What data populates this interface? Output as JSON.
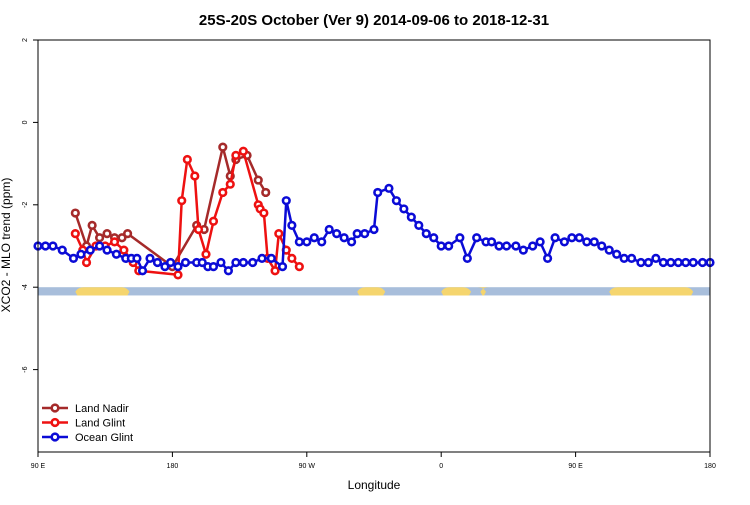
{
  "chart_data": {
    "type": "scatter",
    "title": "25S-20S October (Ver 9)   2014-09-06 to 2018-12-31",
    "xlabel": "Longitude",
    "ylabel": "XCO2 - MLO trend (ppm)",
    "xlim": [
      90,
      450
    ],
    "ylim": [
      -8,
      2
    ],
    "x_ticks": [
      {
        "value": 90,
        "label": "90 E"
      },
      {
        "value": 162,
        "label": "180"
      },
      {
        "value": 234,
        "label": "90 W"
      },
      {
        "value": 306,
        "label": "0"
      },
      {
        "value": 378,
        "label": "90 E"
      },
      {
        "value": 450,
        "label": "180"
      }
    ],
    "y_ticks": [
      {
        "value": 2,
        "label": "2"
      },
      {
        "value": 0,
        "label": "0"
      },
      {
        "value": -2,
        "label": "-2"
      },
      {
        "value": -4,
        "label": "-4"
      },
      {
        "value": -6,
        "label": "-6"
      }
    ],
    "legend_position": "bottom-left",
    "grid": false,
    "land_band": {
      "y_range": [
        -4.2,
        -4.0
      ],
      "ocean_color": "#a8bedb",
      "land_color": "#f5d56e",
      "land_segments": [
        [
          110,
          139
        ],
        [
          261,
          276
        ],
        [
          306,
          322
        ],
        [
          327,
          330
        ],
        [
          396,
          441
        ]
      ]
    },
    "series": [
      {
        "name": "Land Nadir",
        "color": "#a52a2a",
        "x": [
          110,
          116,
          119,
          123,
          127,
          131,
          135,
          138,
          162,
          175,
          179,
          189,
          193,
          196,
          202,
          208,
          212
        ],
        "y": [
          -2.2,
          -3.0,
          -2.5,
          -2.8,
          -2.7,
          -2.8,
          -2.8,
          -2.7,
          -3.5,
          -2.5,
          -2.6,
          -0.6,
          -1.3,
          -0.9,
          -0.8,
          -1.4,
          -1.7
        ]
      },
      {
        "name": "Land Glint",
        "color": "#ee1111",
        "x": [
          110,
          114,
          116,
          121,
          126,
          131,
          136,
          141,
          144,
          165,
          167,
          170,
          174,
          176,
          180,
          184,
          189,
          193,
          196,
          200,
          208,
          209,
          211,
          213,
          217,
          219,
          223,
          226,
          230
        ],
        "y": [
          -2.7,
          -3.1,
          -3.4,
          -3.0,
          -3.0,
          -2.9,
          -3.1,
          -3.4,
          -3.6,
          -3.7,
          -1.9,
          -0.9,
          -1.3,
          -2.6,
          -3.2,
          -2.4,
          -1.7,
          -1.5,
          -0.8,
          -0.7,
          -2.0,
          -2.1,
          -2.2,
          -3.3,
          -3.6,
          -2.7,
          -3.1,
          -3.3,
          -3.5
        ]
      },
      {
        "name": "Ocean Glint",
        "color": "#0b0bd6",
        "x": [
          90,
          94,
          98,
          103,
          109,
          113,
          118,
          123,
          127,
          132,
          137,
          140,
          143,
          146,
          150,
          154,
          158,
          161,
          165,
          169,
          175,
          178,
          181,
          184,
          188,
          192,
          196,
          200,
          205,
          210,
          215,
          221,
          223,
          226,
          230,
          234,
          238,
          242,
          246,
          250,
          254,
          258,
          261,
          265,
          270,
          272,
          278,
          282,
          286,
          290,
          294,
          298,
          302,
          306,
          310,
          316,
          320,
          325,
          330,
          333,
          337,
          341,
          346,
          350,
          355,
          359,
          363,
          367,
          372,
          376,
          380,
          384,
          388,
          392,
          396,
          400,
          404,
          408,
          413,
          417,
          421,
          425,
          429,
          433,
          437,
          441,
          446,
          450
        ],
        "y": [
          -3.0,
          -3.0,
          -3.0,
          -3.1,
          -3.3,
          -3.2,
          -3.1,
          -3.0,
          -3.1,
          -3.2,
          -3.3,
          -3.3,
          -3.3,
          -3.6,
          -3.3,
          -3.4,
          -3.5,
          -3.4,
          -3.5,
          -3.4,
          -3.4,
          -3.4,
          -3.5,
          -3.5,
          -3.4,
          -3.6,
          -3.4,
          -3.4,
          -3.4,
          -3.3,
          -3.3,
          -3.5,
          -1.9,
          -2.5,
          -2.9,
          -2.9,
          -2.8,
          -2.9,
          -2.6,
          -2.7,
          -2.8,
          -2.9,
          -2.7,
          -2.7,
          -2.6,
          -1.7,
          -1.6,
          -1.9,
          -2.1,
          -2.3,
          -2.5,
          -2.7,
          -2.8,
          -3.0,
          -3.0,
          -2.8,
          -3.3,
          -2.8,
          -2.9,
          -2.9,
          -3.0,
          -3.0,
          -3.0,
          -3.1,
          -3.0,
          -2.9,
          -3.3,
          -2.8,
          -2.9,
          -2.8,
          -2.8,
          -2.9,
          -2.9,
          -3.0,
          -3.1,
          -3.2,
          -3.3,
          -3.3,
          -3.4,
          -3.4,
          -3.3,
          -3.4,
          -3.4,
          -3.4,
          -3.4,
          -3.4,
          -3.4,
          -3.4
        ]
      }
    ]
  }
}
